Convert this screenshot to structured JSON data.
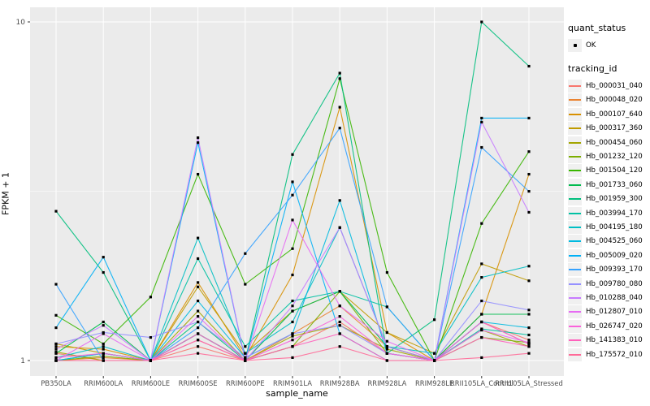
{
  "chart_data": {
    "type": "line",
    "title": "",
    "xlabel": "sample_name",
    "ylabel": "FPKM + 1",
    "y_scale": "log10",
    "ylim": [
      1,
      10
    ],
    "y_ticks": [
      1,
      10
    ],
    "y_minor_ticks": [
      3.1623
    ],
    "grid": "on",
    "legend_position": "right",
    "panel_color": "#EBEBEB",
    "grid_color": "#FFFFFF",
    "tick_label_color": "#4D4D4D",
    "point_color": "#000000",
    "categories": [
      "PB350LA",
      "RRIM600LA",
      "RRIM600LE",
      "RRIM600SE",
      "RRIM600PE",
      "RRIM901LA",
      "RRIM928BA",
      "RRIM928LA",
      "RRIM928LE",
      "RRII105LA_Control",
      "RRII105LA_Stressed"
    ],
    "series": [
      {
        "name": "Hb_000031_040",
        "color": "#F8766D",
        "values": [
          1.05,
          1.0,
          1.0,
          1.1,
          1.0,
          1.1,
          1.3,
          1.05,
          1.0,
          1.3,
          1.15
        ]
      },
      {
        "name": "Hb_000048_020",
        "color": "#EA8331",
        "values": [
          1.0,
          1.02,
          1.0,
          1.15,
          1.0,
          1.2,
          1.45,
          1.1,
          1.0,
          1.3,
          1.12
        ]
      },
      {
        "name": "Hb_000107_640",
        "color": "#D89000",
        "values": [
          1.1,
          1.08,
          1.0,
          1.7,
          1.02,
          1.79,
          5.6,
          1.21,
          1.0,
          1.37,
          3.55
        ]
      },
      {
        "name": "Hb_000317_360",
        "color": "#C09B00",
        "values": [
          1.12,
          1.05,
          1.0,
          1.65,
          1.05,
          1.4,
          1.6,
          1.21,
          1.05,
          1.93,
          1.72
        ]
      },
      {
        "name": "Hb_000454_060",
        "color": "#A3A500",
        "values": [
          1.06,
          1.0,
          1.0,
          1.4,
          1.0,
          1.18,
          1.27,
          1.08,
          1.0,
          1.23,
          1.1
        ]
      },
      {
        "name": "Hb_001232_120",
        "color": "#7CAE00",
        "values": [
          1.0,
          1.03,
          1.0,
          1.2,
          1.0,
          1.1,
          1.6,
          1.05,
          1.0,
          1.17,
          1.13
        ]
      },
      {
        "name": "Hb_001504_120",
        "color": "#39B600",
        "values": [
          1.36,
          1.12,
          1.54,
          3.55,
          1.68,
          2.14,
          6.8,
          1.82,
          1.0,
          2.54,
          4.14
        ]
      },
      {
        "name": "Hb_001733_060",
        "color": "#00BB4E",
        "values": [
          1.05,
          1.3,
          1.0,
          1.2,
          1.0,
          1.4,
          1.6,
          1.1,
          1.0,
          1.37,
          1.37
        ]
      },
      {
        "name": "Hb_001959_300",
        "color": "#00BF7D",
        "values": [
          2.76,
          1.82,
          1.0,
          1.3,
          1.0,
          4.06,
          7.06,
          1.05,
          1.32,
          10.0,
          7.4
        ]
      },
      {
        "name": "Hb_003994_170",
        "color": "#00C1A3",
        "values": [
          1.0,
          1.05,
          1.0,
          2.0,
          1.1,
          1.5,
          1.6,
          1.44,
          1.0,
          1.24,
          1.19
        ]
      },
      {
        "name": "Hb_004195_180",
        "color": "#00BFC4",
        "values": [
          1.02,
          1.1,
          1.0,
          2.3,
          1.05,
          1.3,
          2.47,
          1.1,
          1.05,
          1.76,
          1.9
        ]
      },
      {
        "name": "Hb_004525_060",
        "color": "#00BAE0",
        "values": [
          1.0,
          1.05,
          1.0,
          1.5,
          1.02,
          1.2,
          2.97,
          1.05,
          1.0,
          1.3,
          1.25
        ]
      },
      {
        "name": "Hb_005009_020",
        "color": "#00B0F6",
        "values": [
          1.25,
          2.02,
          1.0,
          4.4,
          1.0,
          3.37,
          1.2,
          1.0,
          1.0,
          5.2,
          5.2
        ]
      },
      {
        "name": "Hb_009393_170",
        "color": "#35A2FF",
        "values": [
          1.68,
          1.0,
          1.0,
          1.25,
          2.07,
          3.08,
          4.86,
          1.44,
          1.0,
          4.26,
          3.16
        ]
      },
      {
        "name": "Hb_009780_080",
        "color": "#9590FF",
        "values": [
          1.12,
          1.21,
          1.17,
          1.3,
          1.02,
          1.2,
          1.27,
          1.05,
          1.0,
          1.5,
          1.41
        ]
      },
      {
        "name": "Hb_010288_040",
        "color": "#C77CFF",
        "values": [
          1.08,
          1.27,
          1.0,
          4.55,
          1.0,
          1.45,
          2.47,
          1.1,
          1.0,
          5.06,
          2.74
        ]
      },
      {
        "name": "Hb_012807_010",
        "color": "#E76BF3",
        "values": [
          1.0,
          1.2,
          1.0,
          1.35,
          1.0,
          2.6,
          1.45,
          1.14,
          1.0,
          1.23,
          1.13
        ]
      },
      {
        "name": "Hb_026747_020",
        "color": "#FA62DB",
        "values": [
          1.02,
          1.05,
          1.0,
          1.2,
          1.0,
          1.15,
          1.35,
          1.05,
          1.0,
          1.3,
          1.12
        ]
      },
      {
        "name": "Hb_141383_010",
        "color": "#FF62BC",
        "values": [
          1.0,
          1.0,
          1.0,
          1.15,
          1.0,
          1.1,
          1.2,
          1.0,
          1.0,
          1.17,
          1.1
        ]
      },
      {
        "name": "Hb_175572_010",
        "color": "#FF6A98",
        "values": [
          1.0,
          1.0,
          1.0,
          1.05,
          1.0,
          1.02,
          1.1,
          1.0,
          1.0,
          1.02,
          1.05
        ]
      }
    ]
  },
  "legend": {
    "quant_status": {
      "title": "quant_status",
      "items": [
        {
          "label": "OK",
          "symbol": "point"
        }
      ]
    },
    "tracking": {
      "title": "tracking_id"
    }
  }
}
